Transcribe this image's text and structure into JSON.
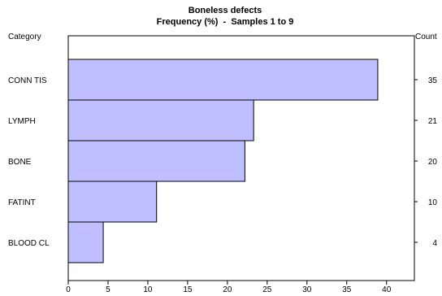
{
  "chart_data": {
    "type": "bar",
    "orientation": "horizontal",
    "title": "Boneless defects",
    "subtitle": "Frequency (%)  -  Samples 1 to 9",
    "left_header": "Category",
    "right_header": "Count",
    "categories": [
      "CONN TIS",
      "LYMPH",
      "BONE",
      "FATINT",
      "BLOOD CL"
    ],
    "values": [
      38.9,
      23.3,
      22.2,
      11.1,
      4.4
    ],
    "counts": [
      "35",
      "21",
      "20",
      "10",
      "4"
    ],
    "xlim": [
      0,
      43.5
    ],
    "xticks": [
      "0",
      "5",
      "10",
      "15",
      "20",
      "25",
      "30",
      "35",
      "40"
    ],
    "grid": false,
    "legend": "none",
    "bar_color": "#BFBFFF",
    "bar_edge_color": "#000000"
  }
}
